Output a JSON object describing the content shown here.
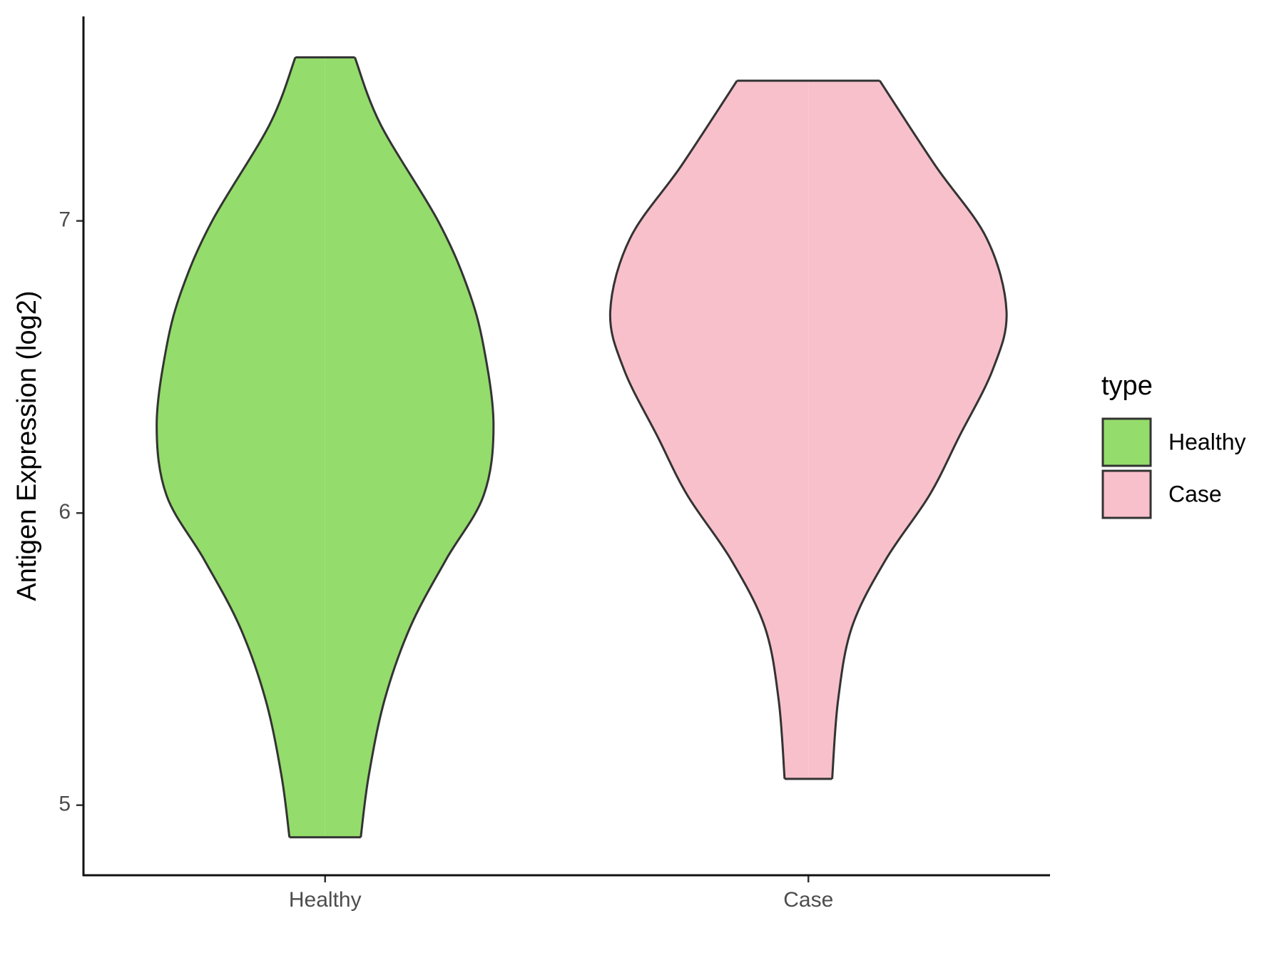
{
  "chart_data": {
    "type": "violin",
    "ylabel": "Antigen Expression (log2)",
    "categories": [
      "Healthy",
      "Case"
    ],
    "legend_title": "type",
    "legend_position": "right",
    "series": [
      {
        "name": "Healthy",
        "color": "#94dc6b",
        "y": [
          7.56,
          7.33,
          7.0,
          6.77,
          6.57,
          6.3,
          6.06,
          5.84,
          5.61,
          5.36,
          5.1,
          4.89
        ],
        "density": [
          0.15,
          0.28,
          0.57,
          0.72,
          0.8,
          0.85,
          0.8,
          0.61,
          0.43,
          0.3,
          0.22,
          0.18
        ]
      },
      {
        "name": "Case",
        "color": "#f8c0cb",
        "y": [
          7.48,
          7.19,
          6.94,
          6.69,
          6.49,
          6.26,
          6.06,
          5.84,
          5.61,
          5.36,
          5.09
        ],
        "density": [
          0.36,
          0.64,
          0.9,
          1.0,
          0.93,
          0.76,
          0.61,
          0.39,
          0.22,
          0.15,
          0.12
        ]
      }
    ],
    "ylim": [
      4.76,
      7.7
    ],
    "yticks": [
      5,
      6,
      7
    ]
  }
}
